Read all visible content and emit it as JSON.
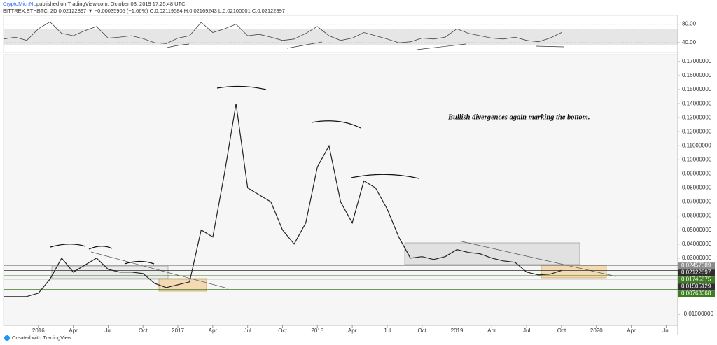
{
  "header": {
    "author": "CryptoMichNL",
    "published": "published on TradingView.com, October 03, 2019 17:25:48 UTC",
    "symbol_line": "BITTREX:ETHBTC, 2D 0.02122897 ▼ −0.00035905 (−1.66%) O:0.02119584 H:0.02169243 L:0.02100001 C:0.02122897"
  },
  "footer": "Created with TradingView",
  "chart_data": [
    {
      "type": "line",
      "color": "#444444",
      "x": [
        "2015-10",
        "2015-11",
        "2015-12",
        "2016-01",
        "2016-02",
        "2016-03",
        "2016-04",
        "2016-05",
        "2016-06",
        "2016-07",
        "2016-08",
        "2016-09",
        "2016-10",
        "2016-11",
        "2016-12",
        "2017-01",
        "2017-02",
        "2017-03",
        "2017-04",
        "2017-05",
        "2017-06",
        "2017-07",
        "2017-08",
        "2017-09",
        "2017-10",
        "2017-11",
        "2017-12",
        "2018-01",
        "2018-02",
        "2018-03",
        "2018-04",
        "2018-05",
        "2018-06",
        "2018-07",
        "2018-08",
        "2018-09",
        "2018-10",
        "2018-11",
        "2018-12",
        "2019-01",
        "2019-02",
        "2019-03",
        "2019-04",
        "2019-05",
        "2019-06",
        "2019-07",
        "2019-08",
        "2019-09",
        "2019-10"
      ],
      "values": [
        48,
        52,
        45,
        70,
        85,
        60,
        55,
        66,
        75,
        50,
        52,
        55,
        49,
        40,
        38,
        50,
        55,
        84,
        62,
        70,
        80,
        55,
        58,
        52,
        45,
        48,
        60,
        75,
        55,
        45,
        50,
        62,
        55,
        48,
        40,
        42,
        50,
        48,
        52,
        70,
        60,
        55,
        50,
        48,
        52,
        45,
        42,
        50,
        62
      ],
      "xlim": [
        "2015-10",
        "2020-08"
      ],
      "ylim": [
        19,
        99
      ],
      "yticks": [
        {
          "value": 80,
          "label": "80.00"
        },
        {
          "value": 40,
          "label": "40.00"
        }
      ]
    },
    {
      "type": "line",
      "color": "#222222",
      "x": [
        "2015-10",
        "2015-11",
        "2015-12",
        "2016-01",
        "2016-02",
        "2016-03",
        "2016-04",
        "2016-05",
        "2016-06",
        "2016-07",
        "2016-08",
        "2016-09",
        "2016-10",
        "2016-11",
        "2016-12",
        "2017-01",
        "2017-02",
        "2017-03",
        "2017-04",
        "2017-05",
        "2017-06",
        "2017-07",
        "2017-08",
        "2017-09",
        "2017-10",
        "2017-11",
        "2017-12",
        "2018-01",
        "2018-02",
        "2018-03",
        "2018-04",
        "2018-05",
        "2018-06",
        "2018-07",
        "2018-08",
        "2018-09",
        "2018-10",
        "2018-11",
        "2018-12",
        "2019-01",
        "2019-02",
        "2019-03",
        "2019-04",
        "2019-05",
        "2019-06",
        "2019-07",
        "2019-08",
        "2019-09",
        "2019-10"
      ],
      "values": [
        0.0025,
        0.0025,
        0.0026,
        0.005,
        0.015,
        0.03,
        0.02,
        0.025,
        0.03,
        0.022,
        0.02,
        0.02,
        0.019,
        0.012,
        0.009,
        0.011,
        0.013,
        0.05,
        0.045,
        0.09,
        0.14,
        0.08,
        0.075,
        0.07,
        0.05,
        0.04,
        0.055,
        0.095,
        0.11,
        0.07,
        0.055,
        0.085,
        0.08,
        0.065,
        0.045,
        0.03,
        0.031,
        0.029,
        0.031,
        0.036,
        0.034,
        0.033,
        0.03,
        0.028,
        0.027,
        0.02,
        0.018,
        0.0185,
        0.0212
      ],
      "xlim": [
        "2015-10",
        "2020-08"
      ],
      "ylim": [
        -0.018,
        0.175
      ],
      "xticks": [
        {
          "value": "2016-01",
          "label": "2016"
        },
        {
          "value": "2016-04",
          "label": "Apr"
        },
        {
          "value": "2016-07",
          "label": "Jul"
        },
        {
          "value": "2016-10",
          "label": "Oct"
        },
        {
          "value": "2017-01",
          "label": "2017"
        },
        {
          "value": "2017-04",
          "label": "Apr"
        },
        {
          "value": "2017-07",
          "label": "Jul"
        },
        {
          "value": "2017-10",
          "label": "Oct"
        },
        {
          "value": "2018-01",
          "label": "2018"
        },
        {
          "value": "2018-04",
          "label": "Apr"
        },
        {
          "value": "2018-07",
          "label": "Jul"
        },
        {
          "value": "2018-10",
          "label": "Oct"
        },
        {
          "value": "2019-01",
          "label": "2019"
        },
        {
          "value": "2019-04",
          "label": "Apr"
        },
        {
          "value": "2019-07",
          "label": "Jul"
        },
        {
          "value": "2019-10",
          "label": "Oct"
        },
        {
          "value": "2020-01",
          "label": "2020"
        },
        {
          "value": "2020-04",
          "label": "Apr"
        },
        {
          "value": "2020-07",
          "label": "Jul"
        }
      ],
      "yticks": [
        {
          "value": 0.17,
          "label": "0.17000000"
        },
        {
          "value": 0.16,
          "label": "0.16000000"
        },
        {
          "value": 0.15,
          "label": "0.15000000"
        },
        {
          "value": 0.14,
          "label": "0.14000000"
        },
        {
          "value": 0.13,
          "label": "0.13000000"
        },
        {
          "value": 0.12,
          "label": "0.12000000"
        },
        {
          "value": 0.11,
          "label": "0.11000000"
        },
        {
          "value": 0.1,
          "label": "0.10000000"
        },
        {
          "value": 0.09,
          "label": "0.09000000"
        },
        {
          "value": 0.08,
          "label": "0.08000000"
        },
        {
          "value": 0.07,
          "label": "0.07000000"
        },
        {
          "value": 0.06,
          "label": "0.06000000"
        },
        {
          "value": 0.05,
          "label": "0.05000000"
        },
        {
          "value": 0.04,
          "label": "0.04000000"
        },
        {
          "value": 0.03,
          "label": "0.03000000"
        },
        {
          "value": -0.01,
          "label": "-0.01000000"
        }
      ],
      "price_lines": [
        {
          "value": 0.02457089,
          "color": "#8a8a8a"
        },
        {
          "value": 0.02122897,
          "color": "#2f2f2f"
        },
        {
          "value": 0.01745875,
          "color": "#3d7d22"
        },
        {
          "value": 0.01505129,
          "color": "#2f2f2f"
        },
        {
          "value": 0.00763068,
          "color": "#3d7d22"
        }
      ],
      "annotations": [
        "Bullish divergences again marking the bottom."
      ]
    }
  ]
}
